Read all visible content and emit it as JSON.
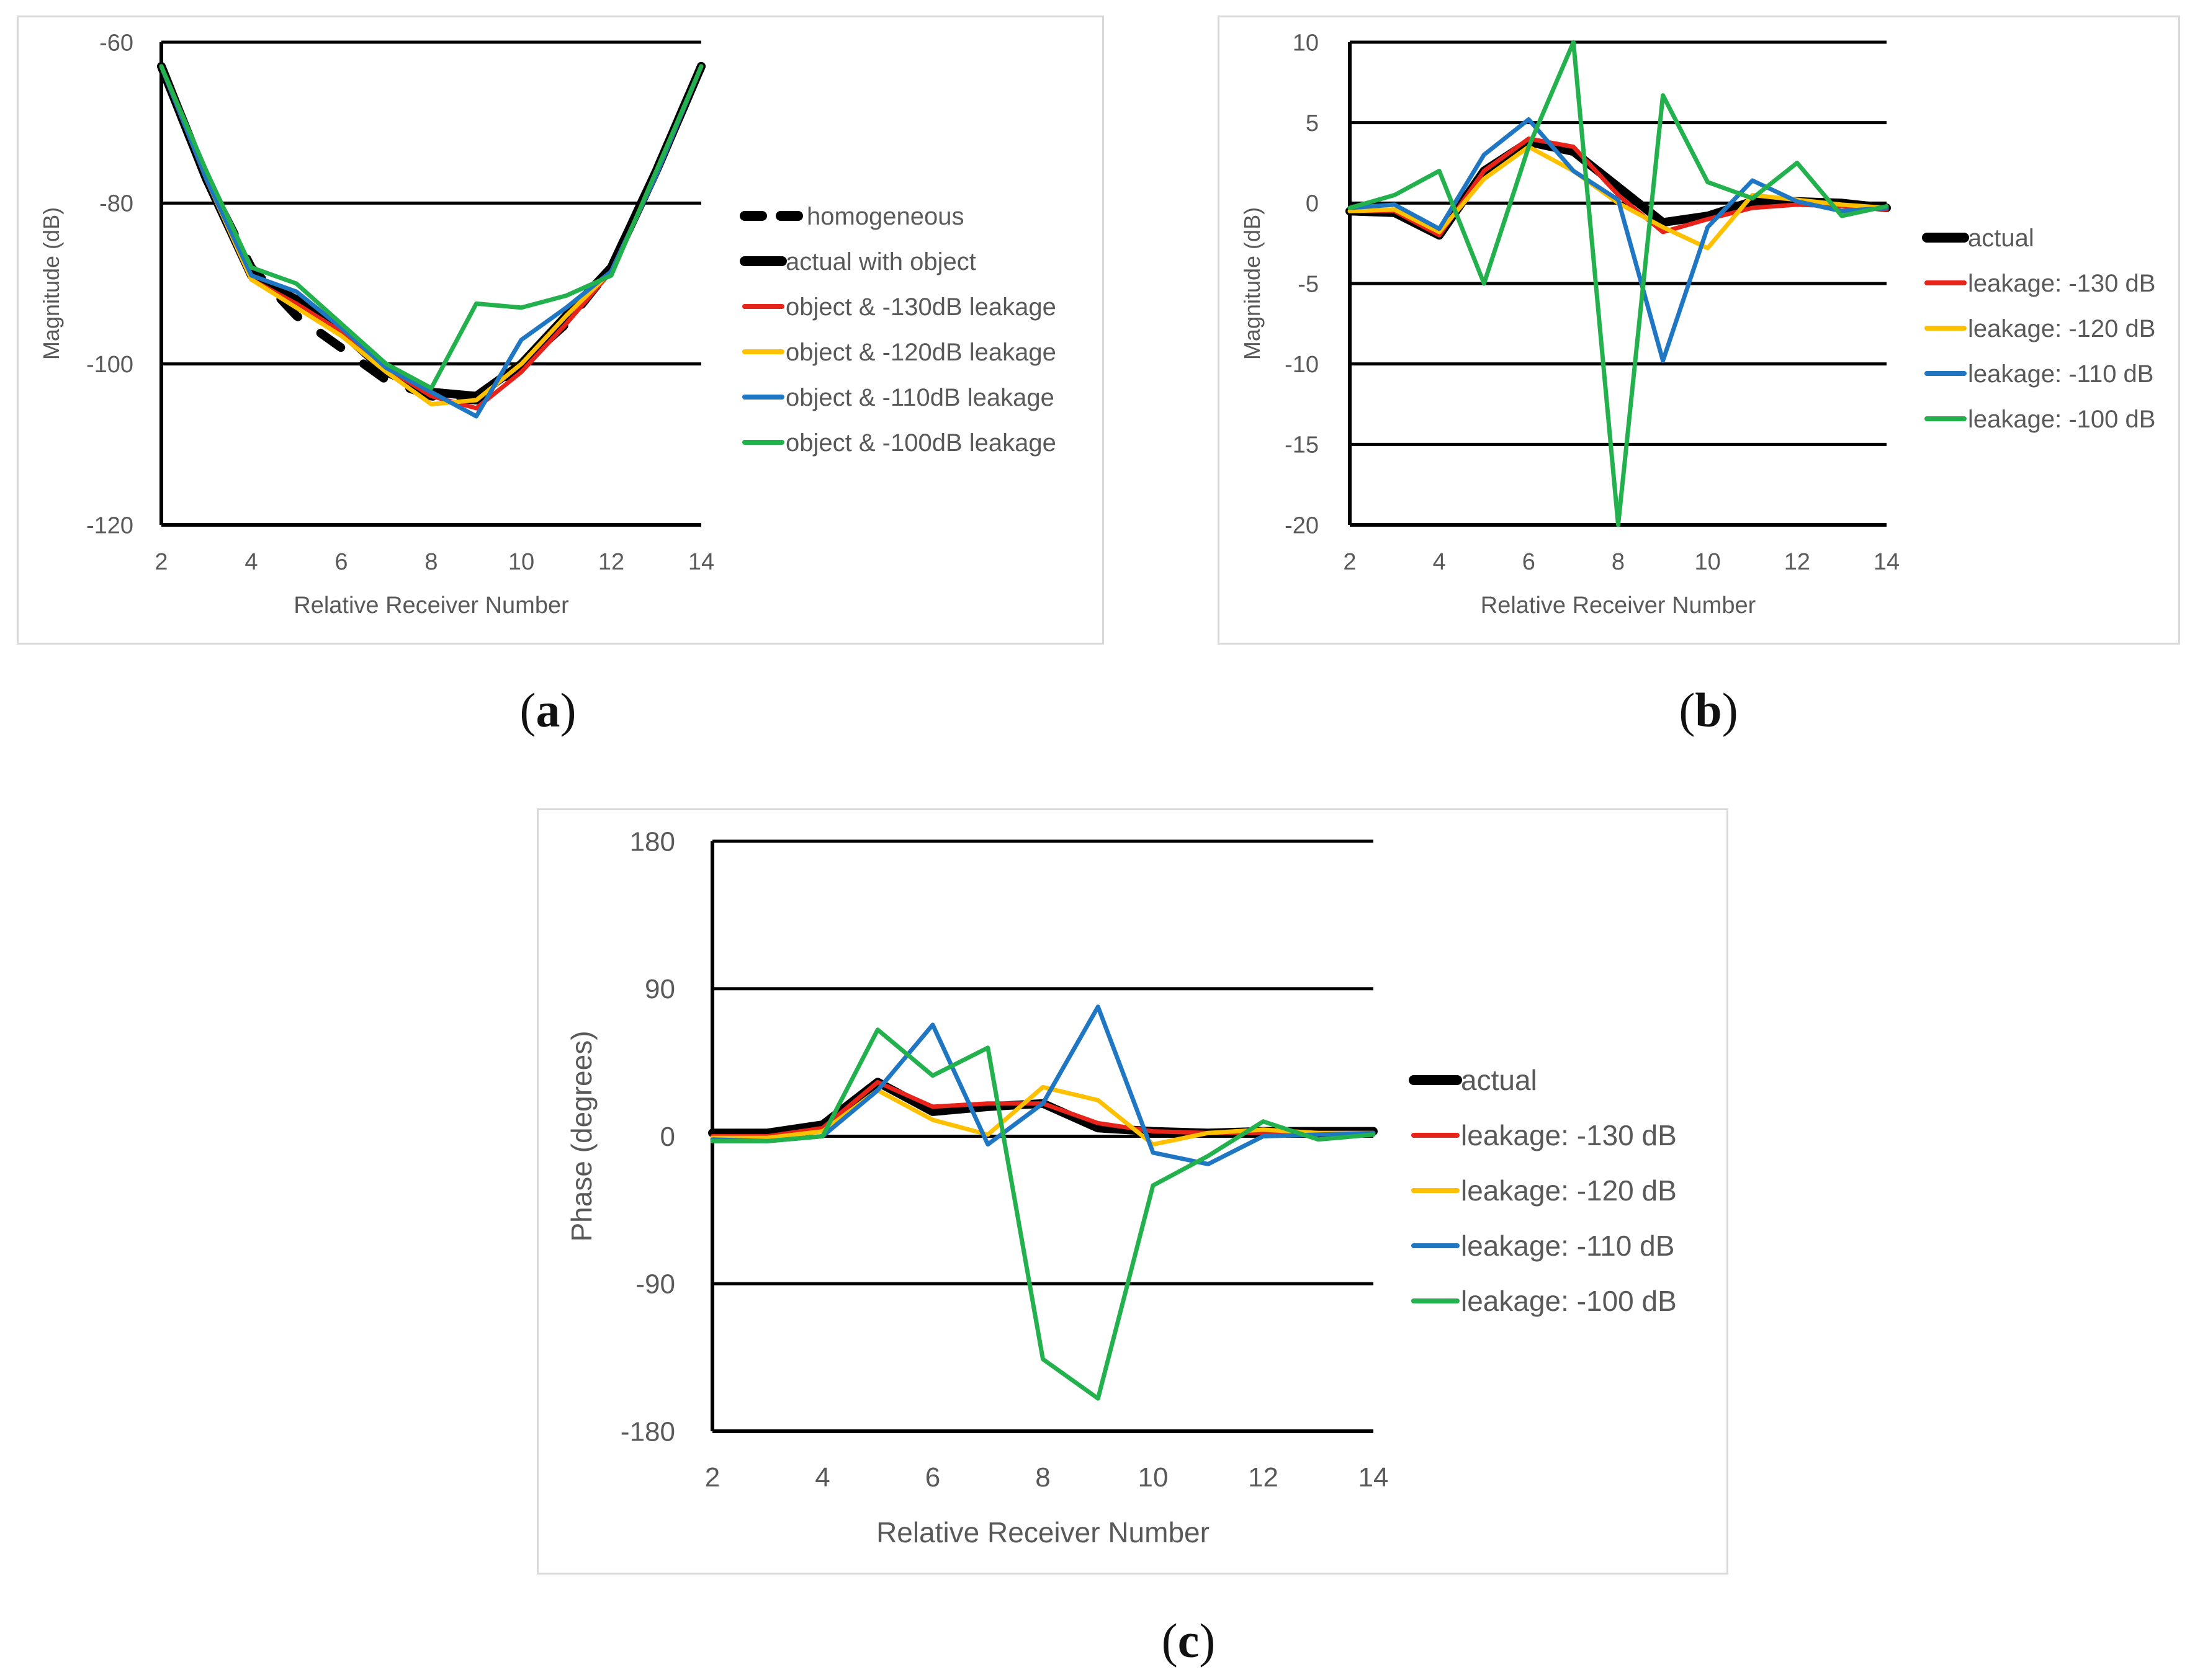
{
  "captions": {
    "a_paren_open": "(",
    "a_letter": "a",
    "a_paren_close": ")",
    "b_paren_open": "(",
    "b_letter": "b",
    "b_paren_close": ")",
    "c_paren_open": "(",
    "c_letter": "c",
    "c_paren_close": ")"
  },
  "chart_data": [
    {
      "id": "a",
      "type": "line",
      "title": "",
      "xlabel": "Relative Receiver Number",
      "ylabel": "Magnitude (dB)",
      "xlim": [
        2,
        14
      ],
      "ylim": [
        -120,
        -60
      ],
      "xticks": [
        2,
        4,
        6,
        8,
        10,
        12,
        14
      ],
      "yticks": [
        -60,
        -80,
        -100,
        -120
      ],
      "grid": true,
      "legend_position": "right",
      "series": [
        {
          "name": "homogeneous",
          "color": "#000000",
          "dashed": true,
          "width": "thick",
          "x": [
            2,
            3,
            4,
            5,
            6,
            7,
            8,
            9,
            10,
            11,
            12,
            13,
            14
          ],
          "y": [
            -63,
            -77,
            -88,
            -94,
            -98,
            -102,
            -104,
            -104.5,
            -100,
            -95,
            -88,
            -76,
            -63
          ]
        },
        {
          "name": "actual with object",
          "color": "#000000",
          "dashed": false,
          "width": "thick",
          "x": [
            2,
            3,
            4,
            5,
            6,
            7,
            8,
            9,
            10,
            11,
            12,
            13,
            14
          ],
          "y": [
            -63,
            -77,
            -89,
            -92,
            -96,
            -101,
            -103.5,
            -104,
            -100,
            -94,
            -88,
            -76,
            -63
          ]
        },
        {
          "name": "object & -130dB leakage",
          "color": "#e8231a",
          "dashed": false,
          "width": "thin",
          "x": [
            2,
            3,
            4,
            5,
            6,
            7,
            8,
            9,
            10,
            11,
            12,
            13,
            14
          ],
          "y": [
            -63,
            -77,
            -89.5,
            -92.5,
            -96,
            -100.5,
            -104,
            -105.5,
            -101,
            -95,
            -88.5,
            -76.5,
            -63
          ]
        },
        {
          "name": "object & -120dB leakage",
          "color": "#ffc000",
          "dashed": false,
          "width": "thin",
          "x": [
            2,
            3,
            4,
            5,
            6,
            7,
            8,
            9,
            10,
            11,
            12,
            13,
            14
          ],
          "y": [
            -63,
            -77,
            -89.5,
            -93,
            -96.5,
            -101,
            -105,
            -104.5,
            -100,
            -94,
            -88.5,
            -76.5,
            -63
          ]
        },
        {
          "name": "object & -110dB leakage",
          "color": "#1f77c4",
          "dashed": false,
          "width": "thin",
          "x": [
            2,
            3,
            4,
            5,
            6,
            7,
            8,
            9,
            10,
            11,
            12,
            13,
            14
          ],
          "y": [
            -63,
            -77,
            -89,
            -91,
            -95.5,
            -100.5,
            -103.5,
            -106.5,
            -97,
            -93,
            -88.5,
            -76.5,
            -63
          ]
        },
        {
          "name": "object & -100dB leakage",
          "color": "#22b14c",
          "dashed": false,
          "width": "thin",
          "x": [
            2,
            3,
            4,
            5,
            6,
            7,
            8,
            9,
            10,
            11,
            12,
            13,
            14
          ],
          "y": [
            -63,
            -76,
            -88,
            -90,
            -95,
            -100,
            -103,
            -92.5,
            -93,
            -91.5,
            -89,
            -76,
            -63
          ]
        }
      ]
    },
    {
      "id": "b",
      "type": "line",
      "title": "",
      "xlabel": "Relative Receiver Number",
      "ylabel": "Magnitude (dB)",
      "xlim": [
        2,
        14
      ],
      "ylim": [
        -20,
        10
      ],
      "xticks": [
        2,
        4,
        6,
        8,
        10,
        12,
        14
      ],
      "yticks": [
        10,
        5,
        0,
        -5,
        -10,
        -15,
        -20
      ],
      "grid": true,
      "legend_position": "right",
      "series": [
        {
          "name": "actual",
          "color": "#000000",
          "width": "thick",
          "x": [
            2,
            3,
            4,
            5,
            6,
            7,
            8,
            9,
            10,
            11,
            12,
            13,
            14
          ],
          "y": [
            -0.5,
            -0.6,
            -2,
            2,
            3.8,
            3.2,
            1,
            -1.2,
            -0.8,
            0.1,
            0.1,
            0,
            -0.3
          ]
        },
        {
          "name": "leakage: -130 dB",
          "color": "#e8231a",
          "width": "thin",
          "x": [
            2,
            3,
            4,
            5,
            6,
            7,
            8,
            9,
            10,
            11,
            12,
            13,
            14
          ],
          "y": [
            -0.5,
            -0.5,
            -2,
            2,
            4,
            3.5,
            0.5,
            -1.8,
            -1,
            -0.3,
            -0.1,
            -0.2,
            -0.4
          ]
        },
        {
          "name": "leakage: -120 dB",
          "color": "#ffc000",
          "width": "thin",
          "x": [
            2,
            3,
            4,
            5,
            6,
            7,
            8,
            9,
            10,
            11,
            12,
            13,
            14
          ],
          "y": [
            -0.5,
            -0.4,
            -1.8,
            1.5,
            3.5,
            2,
            0,
            -1.5,
            -2.8,
            0.5,
            0.2,
            -0.1,
            -0.3
          ]
        },
        {
          "name": "leakage: -110 dB",
          "color": "#1f77c4",
          "width": "thin",
          "x": [
            2,
            3,
            4,
            5,
            6,
            7,
            8,
            9,
            10,
            11,
            12,
            13,
            14
          ],
          "y": [
            -0.3,
            -0.1,
            -1.6,
            3,
            5.2,
            2,
            0.2,
            -9.8,
            -1.5,
            1.4,
            0.1,
            -0.5,
            -0.3
          ]
        },
        {
          "name": "leakage: -100 dB",
          "color": "#22b14c",
          "width": "thin",
          "x": [
            2,
            3,
            4,
            5,
            6,
            7,
            8,
            9,
            10,
            11,
            12,
            13,
            14
          ],
          "y": [
            -0.3,
            0.5,
            2,
            -5,
            3.5,
            10,
            -20,
            6.7,
            1.3,
            0.3,
            2.5,
            -0.8,
            -0.2
          ]
        }
      ]
    },
    {
      "id": "c",
      "type": "line",
      "title": "",
      "xlabel": "Relative Receiver Number",
      "ylabel": "Phase (degrees)",
      "xlim": [
        2,
        14
      ],
      "ylim": [
        -180,
        180
      ],
      "xticks": [
        2,
        4,
        6,
        8,
        10,
        12,
        14
      ],
      "yticks": [
        180,
        90,
        0,
        -90,
        -180
      ],
      "grid": true,
      "legend_position": "right",
      "series": [
        {
          "name": "actual",
          "color": "#000000",
          "width": "thick",
          "x": [
            2,
            3,
            4,
            5,
            6,
            7,
            8,
            9,
            10,
            11,
            12,
            13,
            14
          ],
          "y": [
            2,
            2,
            7,
            33,
            15,
            18,
            20,
            5,
            3,
            2,
            3,
            3,
            3
          ]
        },
        {
          "name": "leakage: -130 dB",
          "color": "#e8231a",
          "width": "thin",
          "x": [
            2,
            3,
            4,
            5,
            6,
            7,
            8,
            9,
            10,
            11,
            12,
            13,
            14
          ],
          "y": [
            0,
            0,
            5,
            33,
            18,
            20,
            20,
            8,
            3,
            2,
            2,
            2,
            2
          ]
        },
        {
          "name": "leakage: -120 dB",
          "color": "#ffc000",
          "width": "thin",
          "x": [
            2,
            3,
            4,
            5,
            6,
            7,
            8,
            9,
            10,
            11,
            12,
            13,
            14
          ],
          "y": [
            -1,
            -1,
            3,
            28,
            10,
            1,
            30,
            22,
            -5,
            2,
            4,
            2,
            2
          ]
        },
        {
          "name": "leakage: -110 dB",
          "color": "#1f77c4",
          "width": "thin",
          "x": [
            2,
            3,
            4,
            5,
            6,
            7,
            8,
            9,
            10,
            11,
            12,
            13,
            14
          ],
          "y": [
            -2,
            -3,
            0,
            28,
            68,
            -5,
            20,
            79,
            -10,
            -17,
            0,
            1,
            2
          ]
        },
        {
          "name": "leakage: -100 dB",
          "color": "#22b14c",
          "width": "thin",
          "x": [
            2,
            3,
            4,
            5,
            6,
            7,
            8,
            9,
            10,
            11,
            12,
            13,
            14
          ],
          "y": [
            -3,
            -3,
            0,
            65,
            37,
            54,
            -136,
            -160,
            -30,
            -12,
            9,
            -2,
            1
          ]
        }
      ]
    }
  ]
}
